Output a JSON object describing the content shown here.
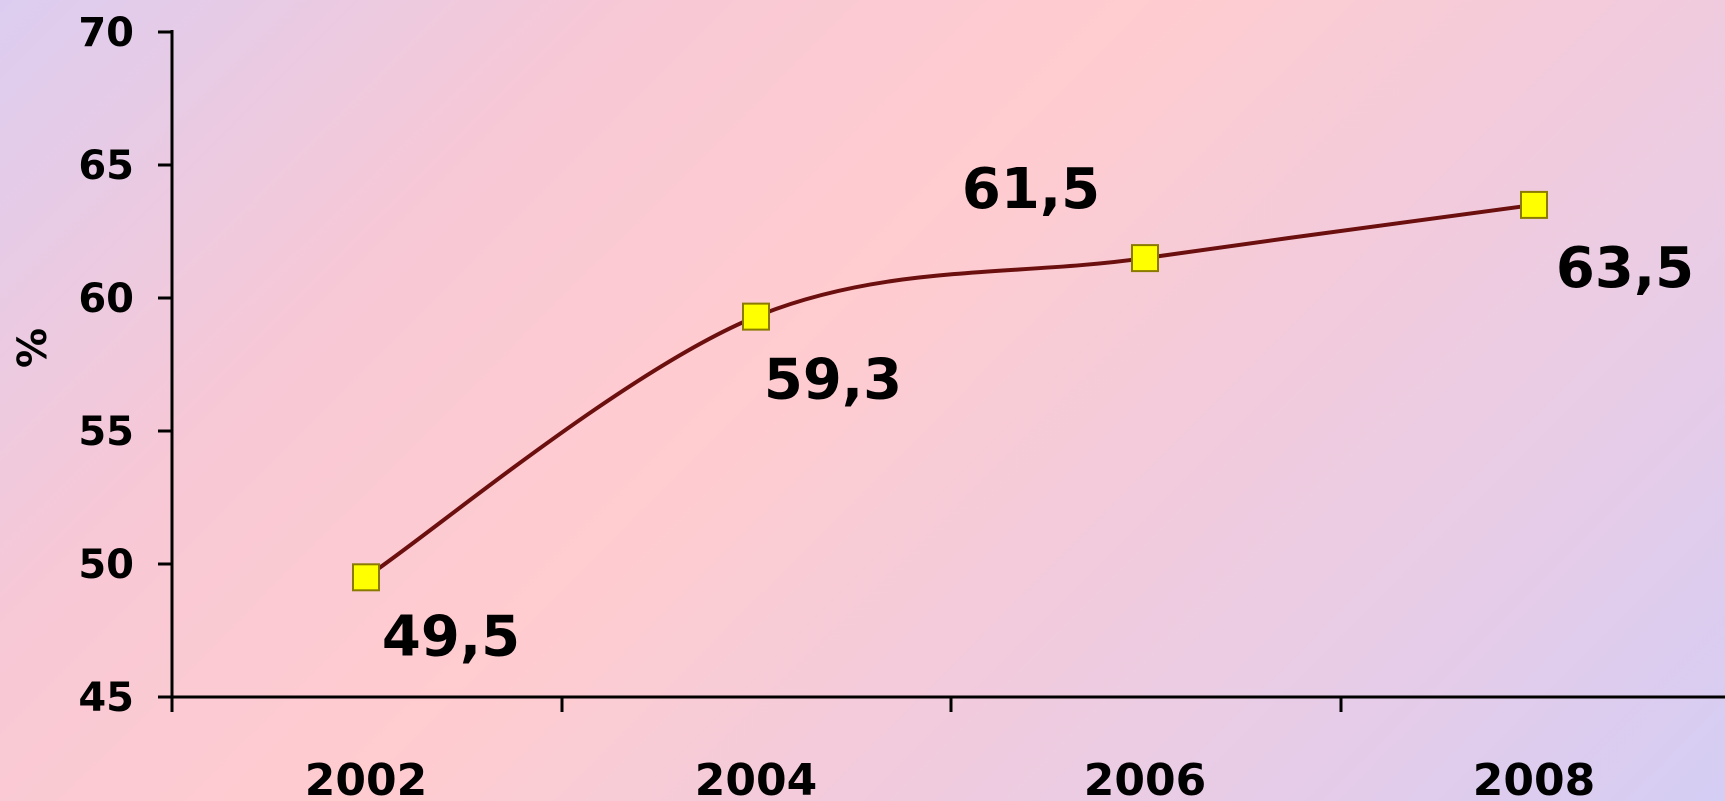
{
  "chart_data": {
    "type": "line",
    "title": "",
    "xlabel": "",
    "ylabel": "%",
    "categories": [
      "2002",
      "2004",
      "2006",
      "2008"
    ],
    "series": [
      {
        "values": [
          49.5,
          59.3,
          61.5,
          63.5
        ],
        "data_labels": [
          "49,5",
          "59,3",
          "61,5",
          "63,5"
        ]
      }
    ],
    "yticks": [
      45,
      50,
      55,
      60,
      65,
      70
    ],
    "ylim": [
      45,
      70
    ],
    "grid": false,
    "legend": "none",
    "smooth": true,
    "colors": {
      "line": "#6b0f0f",
      "marker_fill": "#ffff00",
      "marker_stroke": "#8a7a00",
      "axis": "#000000"
    }
  }
}
